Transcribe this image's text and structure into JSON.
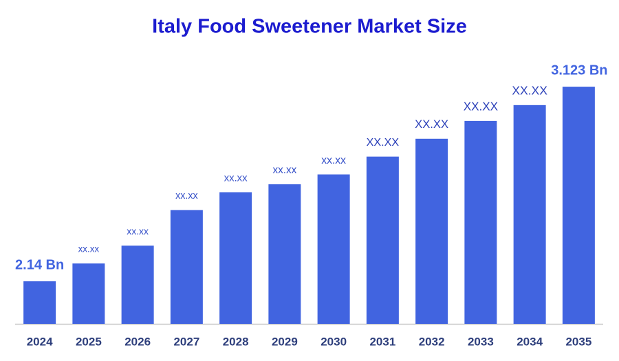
{
  "chart_data": {
    "type": "bar",
    "title": "Italy Food Sweetener Market Size",
    "categories": [
      "2024",
      "2025",
      "2026",
      "2027",
      "2028",
      "2029",
      "2030",
      "2031",
      "2032",
      "2033",
      "2034",
      "2035"
    ],
    "values": [
      2.14,
      2.23,
      2.32,
      2.5,
      2.59,
      2.63,
      2.68,
      2.77,
      2.86,
      2.95,
      3.03,
      3.123
    ],
    "value_labels": [
      "2.14 Bn",
      "xx.xx",
      "xx.xx",
      "xx.xx",
      "xx.xx",
      "xx.xx",
      "xx.xx",
      "XX.XX",
      "XX.XX",
      "XX.XX",
      "XX.XX",
      "3.123 Bn"
    ],
    "color": "#4164e0",
    "ylim": [
      1.925,
      3.25
    ]
  }
}
